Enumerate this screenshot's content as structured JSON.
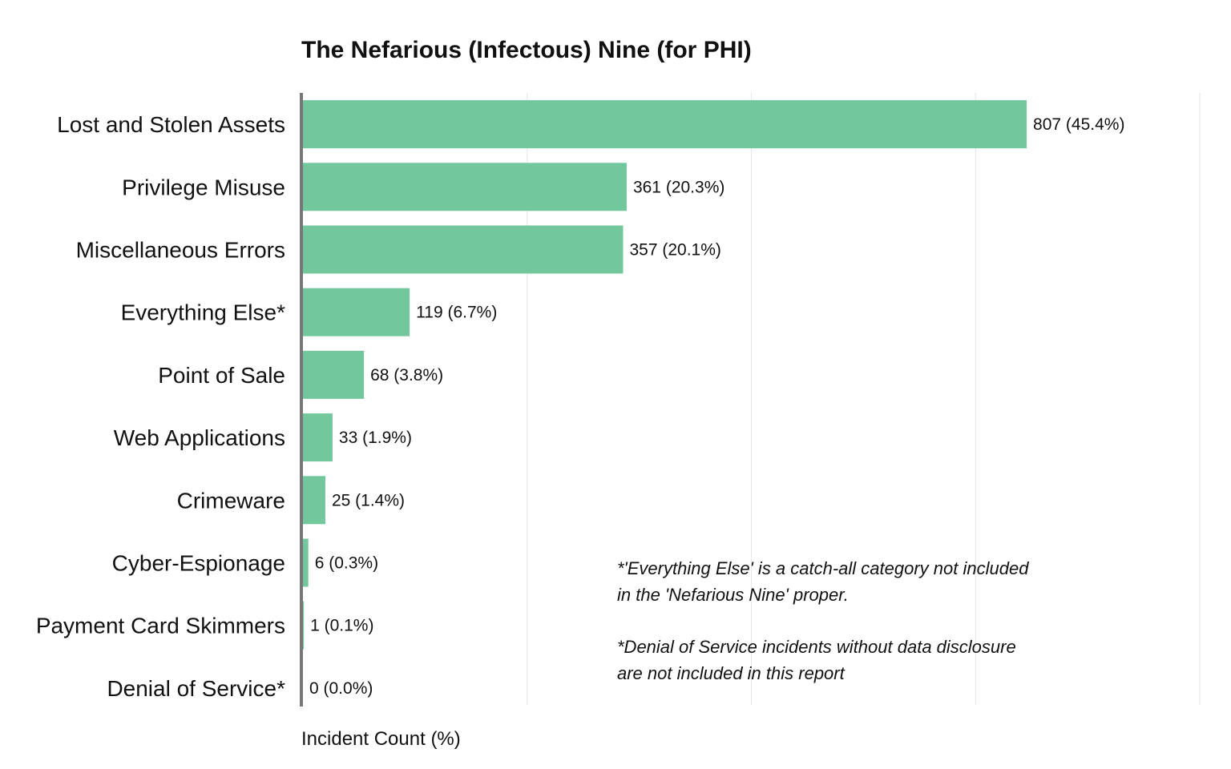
{
  "chart_data": {
    "type": "bar",
    "orientation": "horizontal",
    "title": "The Nefarious (Infectous) Nine (for PHI)",
    "xlabel": "Incident Count (%)",
    "ylabel": "",
    "xlim": [
      0,
      1000
    ],
    "grid": true,
    "categories": [
      "Lost and Stolen Assets",
      "Privilege Misuse",
      "Miscellaneous Errors",
      "Everything Else*",
      "Point of Sale",
      "Web Applications",
      "Crimeware",
      "Cyber-Espionage",
      "Payment Card Skimmers",
      "Denial of Service*"
    ],
    "values": [
      807,
      361,
      357,
      119,
      68,
      33,
      25,
      6,
      1,
      0
    ],
    "percents": [
      "45.4%",
      "20.3%",
      "20.1%",
      "6.7%",
      "3.8%",
      "1.9%",
      "1.4%",
      "0.3%",
      "0.1%",
      "0.0%"
    ],
    "data_labels": [
      "807 (45.4%)",
      "361 (20.3%)",
      "357 (20.1%)",
      "119 (6.7%)",
      "68 (3.8%)",
      "33 (1.9%)",
      "25 (1.4%)",
      "6 (0.3%)",
      "1 (0.1%)",
      "0 (0.0%)"
    ],
    "bar_color": "#72c79c",
    "annotations": [
      [
        "*'Everything Else' is a catch-all category not included",
        " in the 'Nefarious Nine' proper."
      ],
      [
        "*Denial of Service incidents without data disclosure",
        " are not included in this report"
      ]
    ]
  }
}
